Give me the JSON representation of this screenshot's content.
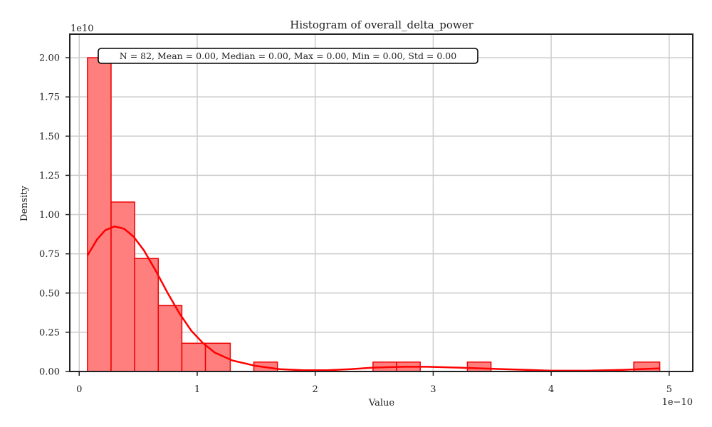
{
  "chart_data": {
    "type": "histogram",
    "title": "Histogram of overall_delta_power",
    "xlabel": "Value",
    "ylabel": "Density",
    "x_scale_label": "1e−10",
    "y_scale_label": "1e10",
    "xlim": [
      -0.08,
      5.2
    ],
    "ylim": [
      0,
      2.15
    ],
    "xticks": [
      0,
      1,
      2,
      3,
      4,
      5
    ],
    "yticks": [
      0.0,
      0.25,
      0.5,
      0.75,
      1.0,
      1.25,
      1.5,
      1.75,
      2.0
    ],
    "xtick_labels": [
      "0",
      "1",
      "2",
      "3",
      "4",
      "5"
    ],
    "ytick_labels": [
      "0.00",
      "0.25",
      "0.50",
      "0.75",
      "1.00",
      "1.25",
      "1.50",
      "1.75",
      "2.00"
    ],
    "grid": true,
    "bins": [
      {
        "x0": 0.07,
        "x1": 0.27,
        "density": 2.0
      },
      {
        "x0": 0.27,
        "x1": 0.47,
        "density": 1.08
      },
      {
        "x0": 0.47,
        "x1": 0.67,
        "density": 0.72
      },
      {
        "x0": 0.67,
        "x1": 0.87,
        "density": 0.42
      },
      {
        "x0": 0.87,
        "x1": 1.07,
        "density": 0.18
      },
      {
        "x0": 1.07,
        "x1": 1.28,
        "density": 0.18
      },
      {
        "x0": 1.28,
        "x1": 1.48,
        "density": 0.0
      },
      {
        "x0": 1.48,
        "x1": 1.68,
        "density": 0.06
      },
      {
        "x0": 1.68,
        "x1": 1.88,
        "density": 0.0
      },
      {
        "x0": 1.88,
        "x1": 2.08,
        "density": 0.0
      },
      {
        "x0": 2.08,
        "x1": 2.28,
        "density": 0.0
      },
      {
        "x0": 2.28,
        "x1": 2.49,
        "density": 0.0
      },
      {
        "x0": 2.49,
        "x1": 2.69,
        "density": 0.06
      },
      {
        "x0": 2.69,
        "x1": 2.89,
        "density": 0.06
      },
      {
        "x0": 2.89,
        "x1": 3.09,
        "density": 0.0
      },
      {
        "x0": 3.09,
        "x1": 3.29,
        "density": 0.0
      },
      {
        "x0": 3.29,
        "x1": 3.49,
        "density": 0.06
      },
      {
        "x0": 3.49,
        "x1": 3.69,
        "density": 0.0
      },
      {
        "x0": 3.69,
        "x1": 3.89,
        "density": 0.0
      },
      {
        "x0": 3.89,
        "x1": 4.09,
        "density": 0.0
      },
      {
        "x0": 4.09,
        "x1": 4.29,
        "density": 0.0
      },
      {
        "x0": 4.29,
        "x1": 4.49,
        "density": 0.0
      },
      {
        "x0": 4.49,
        "x1": 4.7,
        "density": 0.0
      },
      {
        "x0": 4.7,
        "x1": 4.92,
        "density": 0.06
      }
    ],
    "kde": {
      "x": [
        0.07,
        0.15,
        0.22,
        0.3,
        0.38,
        0.46,
        0.55,
        0.65,
        0.75,
        0.85,
        0.95,
        1.05,
        1.15,
        1.3,
        1.5,
        1.7,
        1.9,
        2.1,
        2.3,
        2.5,
        2.75,
        2.95,
        3.2,
        3.4,
        3.6,
        3.8,
        4.0,
        4.3,
        4.6,
        4.92
      ],
      "y": [
        0.74,
        0.84,
        0.9,
        0.925,
        0.91,
        0.86,
        0.77,
        0.64,
        0.5,
        0.37,
        0.26,
        0.18,
        0.12,
        0.07,
        0.035,
        0.015,
        0.008,
        0.008,
        0.015,
        0.025,
        0.03,
        0.03,
        0.025,
        0.02,
        0.015,
        0.01,
        0.005,
        0.005,
        0.01,
        0.02
      ]
    },
    "stats_text": "N = 82, Mean = 0.00, Median = 0.00, Max = 0.00, Min = 0.00, Std = 0.00",
    "colors": {
      "bar_fill": "#ff7f7f",
      "bar_edge": "#ee0000",
      "kde_line": "#ff0000",
      "grid": "#cccccc",
      "axis": "#222222"
    }
  }
}
